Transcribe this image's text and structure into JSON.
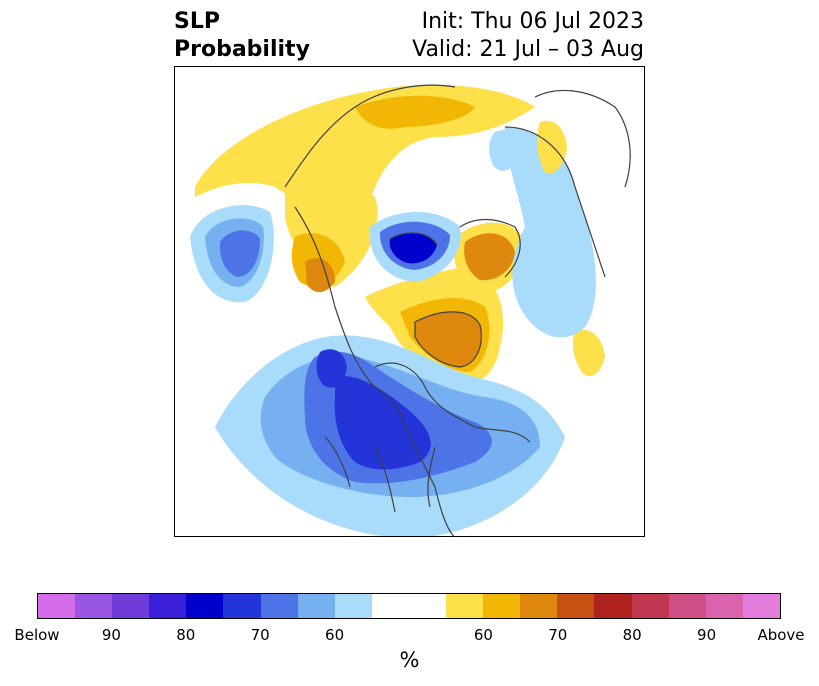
{
  "header": {
    "title_line1": "SLP",
    "title_line2": "Probability",
    "init_text": "Init: Thu 06 Jul 2023",
    "valid_text": "Valid: 21 Jul – 03 Aug"
  },
  "colorbar": {
    "colors": [
      "#d46be8",
      "#9b55e3",
      "#6f3bd9",
      "#3a1fd8",
      "#0000cc",
      "#2334d8",
      "#4d74e6",
      "#77b0f1",
      "#a9dbfb",
      "#ffffff",
      "#ffffff",
      "#fde04a",
      "#f2b705",
      "#df880e",
      "#c55213",
      "#b0221f",
      "#c0384f",
      "#cd4f86",
      "#d963ad",
      "#e27ddd"
    ],
    "labels": [
      "Below",
      "90",
      "80",
      "70",
      "60",
      "60",
      "70",
      "80",
      "90",
      "Above"
    ],
    "units": "%"
  },
  "map": {
    "projection": "north-polar-stereographic",
    "below_colors": {
      "60": "#a9dbfb",
      "65": "#77b0f1",
      "70": "#4d74e6",
      "75": "#2334d8",
      "80": "#0000cc"
    },
    "above_colors": {
      "60": "#fde04a",
      "65": "#f2b705",
      "70": "#df880e"
    },
    "coast_color": "#404040"
  }
}
